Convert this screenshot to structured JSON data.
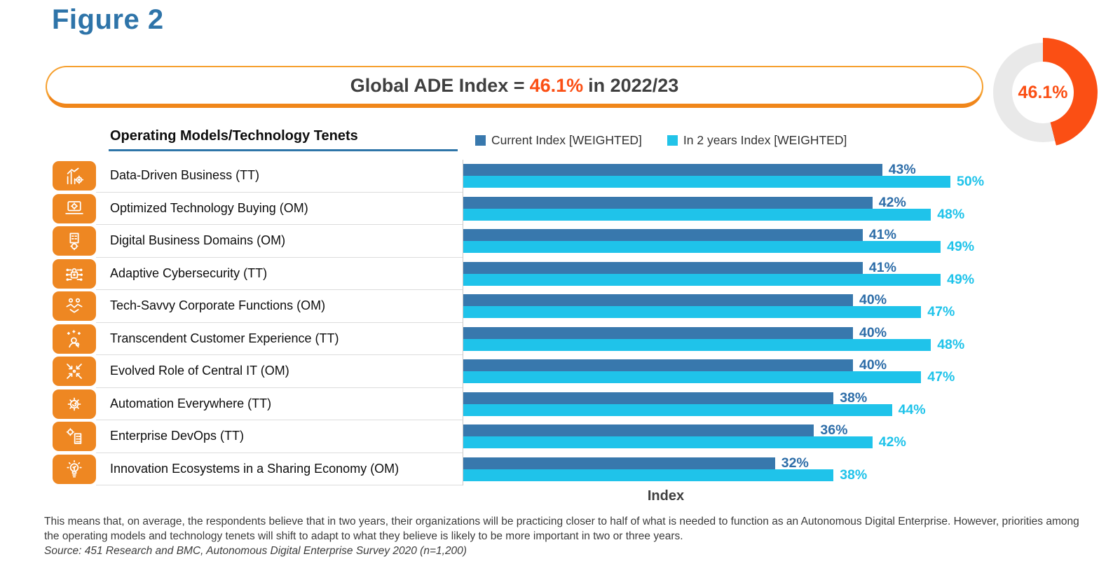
{
  "figure_title": "Figure 2",
  "banner": {
    "prefix": "Global ADE Index = ",
    "highlight": "46.1%",
    "suffix": " in 2022/23"
  },
  "donut": {
    "percent": 46.1,
    "label": "46.1%"
  },
  "list_header": "Operating Models/Technology Tenets",
  "legend": [
    {
      "label": "Current Index [WEIGHTED]",
      "color": "#3878AD"
    },
    {
      "label": "In 2 years Index [WEIGHTED]",
      "color": "#22C3E8"
    }
  ],
  "icons": [
    "bar-chart-gear-icon",
    "laptop-gear-icon",
    "buildings-gear-icon",
    "cybersecurity-lock-icon",
    "handshake-icon",
    "customer-stars-icon",
    "converging-arrows-icon",
    "automation-gear-icon",
    "devops-gear-building-icon",
    "innovation-lightbulb-icon"
  ],
  "colors": {
    "title_blue": "#2E74A9",
    "pill_orange": "#F0861A",
    "icon_orange": "#EE8722",
    "orange_red": "#FB4F14",
    "bar_current": "#3878AD",
    "bar_future": "#1FC3EA",
    "donut_track": "#E9E9E9"
  },
  "chart_data": {
    "type": "bar",
    "orientation": "horizontal",
    "title": "Global ADE Index = 46.1% in 2022/23",
    "categories": [
      "Data-Driven Business (TT)",
      "Optimized Technology Buying (OM)",
      "Digital Business Domains (OM)",
      "Adaptive Cybersecurity (TT)",
      "Tech-Savvy Corporate Functions (OM)",
      "Transcendent Customer Experience (TT)",
      "Evolved Role of Central IT (OM)",
      "Automation Everywhere (TT)",
      "Enterprise DevOps (TT)",
      "Innovation Ecosystems in a Sharing Economy (OM)"
    ],
    "series": [
      {
        "name": "Current Index [WEIGHTED]",
        "values": [
          43,
          42,
          41,
          41,
          40,
          40,
          40,
          38,
          36,
          32
        ],
        "labels": [
          "43%",
          "42%",
          "41%",
          "41%",
          "40%",
          "40%",
          "40%",
          "38%",
          "36%",
          "32%"
        ]
      },
      {
        "name": "In 2 years Index [WEIGHTED]",
        "values": [
          50,
          48,
          49,
          49,
          47,
          48,
          47,
          44,
          42,
          38
        ],
        "labels": [
          "50%",
          "48%",
          "49%",
          "49%",
          "47%",
          "48%",
          "47%",
          "44%",
          "42%",
          "38%"
        ]
      }
    ],
    "xlabel": "Index",
    "xlim": [
      0,
      56
    ],
    "grid": false,
    "legend_position": "top",
    "value_labels": true
  },
  "footer": {
    "paragraph": "This means that, on average, the respondents believe that in two years, their organizations will be practicing closer to half of what is needed to function as an Autonomous Digital Enterprise. However, priorities among the operating models and technology tenets will shift to adapt to what they believe is likely to be more important in two or three years.",
    "source": "Source: 451 Research and BMC, Autonomous Digital Enterprise Survey 2020 (n=1,200)"
  }
}
